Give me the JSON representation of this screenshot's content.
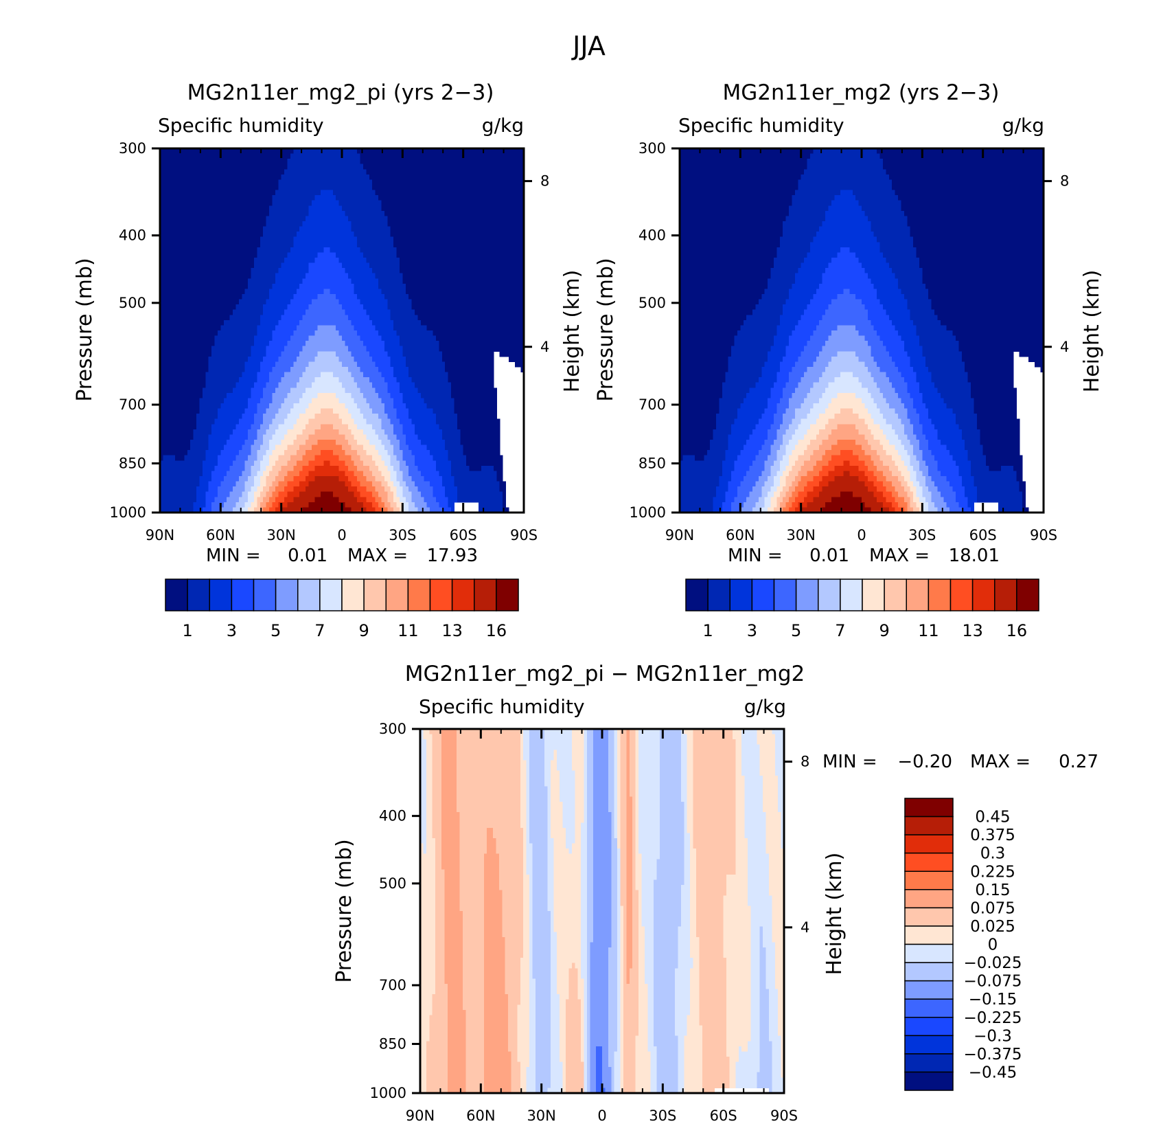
{
  "title": "JJA",
  "colors": {
    "abs": [
      "#000F80",
      "#0027B3",
      "#0034DB",
      "#1A48FF",
      "#3D66FF",
      "#7E9CFF",
      "#B3C8FF",
      "#D8E6FF",
      "#FFE6D3",
      "#FFC7AD",
      "#FFA583",
      "#FF7A4A",
      "#FF4E22",
      "#E12D0A",
      "#B61E07",
      "#7F0000"
    ],
    "diff": [
      "#000F80",
      "#0027B3",
      "#0034DB",
      "#1A48FF",
      "#3D66FF",
      "#7E9CFF",
      "#B3C8FF",
      "#D8E6FF",
      "#FFE6D3",
      "#FFC7AD",
      "#FFA583",
      "#FF7A4A",
      "#FF4E22",
      "#E12D0A",
      "#B61E07",
      "#7F0000"
    ]
  },
  "chart_data": [
    {
      "type": "heatmap",
      "title": "MG2n11er_mg2_pi (yrs 2−3)",
      "subtitle_left": "Specific humidity",
      "subtitle_right": "g/kg",
      "ylabel": "Pressure (mb)",
      "ylabel_right": "Height (km)",
      "x_ticks": [
        "90N",
        "60N",
        "30N",
        "0",
        "30S",
        "60S",
        "90S"
      ],
      "y_ticks": [
        "300",
        "400",
        "500",
        "700",
        "850",
        "1000"
      ],
      "y_right_ticks": [
        "8",
        "4"
      ],
      "min_label": "MIN =",
      "min_value": "0.01",
      "max_label": "MAX =",
      "max_value": "17.93",
      "min": 0.01,
      "max": 17.93,
      "peak_lat": 8,
      "colorbar_labels": [
        "1",
        "3",
        "5",
        "7",
        "9",
        "11",
        "13",
        "16"
      ],
      "ylim": [
        1000,
        300
      ]
    },
    {
      "type": "heatmap",
      "title": "MG2n11er_mg2 (yrs 2−3)",
      "subtitle_left": "Specific humidity",
      "subtitle_right": "g/kg",
      "ylabel": "Pressure (mb)",
      "ylabel_right": "Height (km)",
      "x_ticks": [
        "90N",
        "60N",
        "30N",
        "0",
        "30S",
        "60S",
        "90S"
      ],
      "y_ticks": [
        "300",
        "400",
        "500",
        "700",
        "850",
        "1000"
      ],
      "y_right_ticks": [
        "8",
        "4"
      ],
      "min_label": "MIN =",
      "min_value": "0.01",
      "max_label": "MAX =",
      "max_value": "18.01",
      "min": 0.01,
      "max": 18.01,
      "peak_lat": 8,
      "colorbar_labels": [
        "1",
        "3",
        "5",
        "7",
        "9",
        "11",
        "13",
        "16"
      ],
      "ylim": [
        1000,
        300
      ]
    },
    {
      "type": "heatmap",
      "title": "MG2n11er_mg2_pi − MG2n11er_mg2",
      "subtitle_left": "Specific humidity",
      "subtitle_right": "g/kg",
      "ylabel": "Pressure (mb)",
      "ylabel_right": "Height (km)",
      "x_ticks": [
        "90N",
        "60N",
        "30N",
        "0",
        "30S",
        "60S",
        "90S"
      ],
      "y_ticks": [
        "300",
        "400",
        "500",
        "700",
        "850",
        "1000"
      ],
      "y_right_ticks": [
        "8",
        "4"
      ],
      "min_label": "MIN =",
      "min_value": "−0.20",
      "max_label": "MAX =",
      "max_value": "0.27",
      "min": -0.2,
      "max": 0.27,
      "colorbar_labels": [
        "0.45",
        "0.375",
        "0.3",
        "0.225",
        "0.15",
        "0.075",
        "0.025",
        "0",
        "−0.025",
        "−0.075",
        "−0.15",
        "−0.225",
        "−0.3",
        "−0.375",
        "−0.45"
      ],
      "ylim": [
        1000,
        300
      ]
    }
  ]
}
